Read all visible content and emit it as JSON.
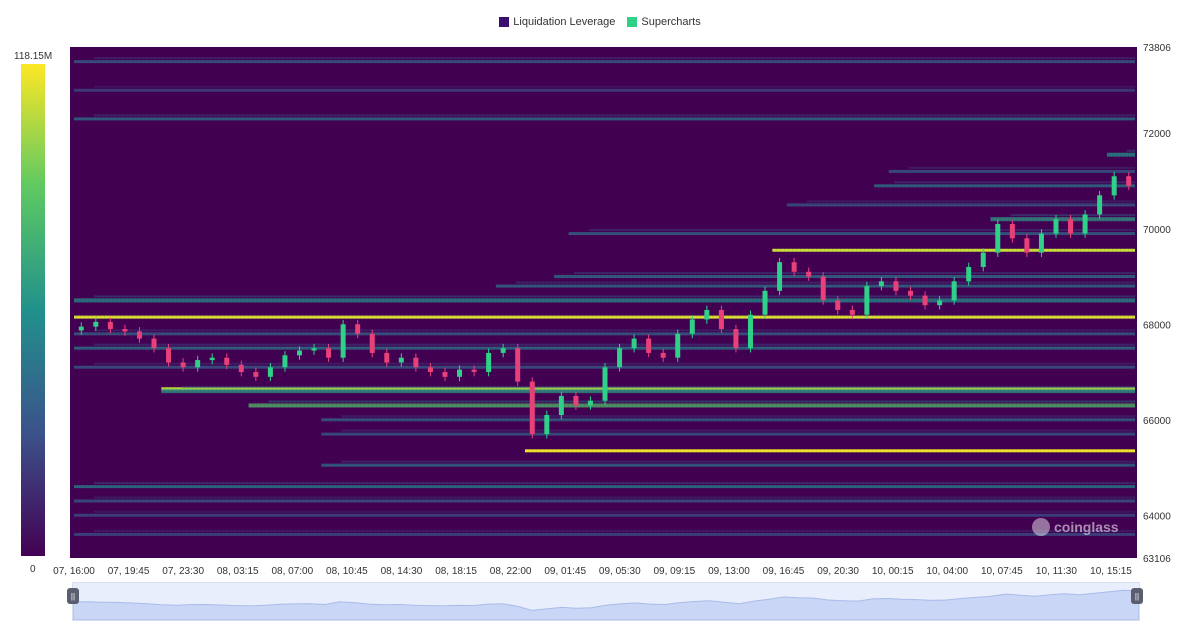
{
  "legend": {
    "items": [
      {
        "label": "Liquidation Leverage",
        "color": "#3b0f70"
      },
      {
        "label": "Supercharts",
        "color": "#2fd088"
      }
    ]
  },
  "colorbar": {
    "max_label": "118.15M",
    "min_label": "0",
    "max": 118.15,
    "min": 0,
    "unit": "M"
  },
  "watermark": {
    "text": "coinglass"
  },
  "chart_data": {
    "type": "heatmap",
    "y_axis": {
      "min": 63106,
      "max": 73806,
      "tick_values": [
        64000,
        66000,
        68000,
        70000,
        72000
      ],
      "tick_labels": [
        "64000",
        "66000",
        "68000",
        "70000",
        "72000"
      ],
      "edge_labels": [
        "73806",
        "63106"
      ]
    },
    "x_axis": {
      "tick_labels": [
        "07, 16:00",
        "07, 19:45",
        "07, 23:30",
        "08, 03:15",
        "08, 07:00",
        "08, 10:45",
        "08, 14:30",
        "08, 18:15",
        "08, 22:00",
        "09, 01:45",
        "09, 05:30",
        "09, 09:15",
        "09, 13:00",
        "09, 16:45",
        "09, 20:30",
        "10, 00:15",
        "10, 04:00",
        "10, 07:45",
        "10, 11:30",
        "10, 15:15"
      ]
    },
    "price_series": {
      "name": "Supercharts",
      "close": [
        67950,
        68050,
        67900,
        67850,
        67700,
        67500,
        67200,
        67100,
        67250,
        67300,
        67150,
        67000,
        66900,
        67100,
        67350,
        67450,
        67500,
        67300,
        68000,
        67800,
        67400,
        67200,
        67300,
        67100,
        67000,
        66900,
        67050,
        67000,
        67400,
        67500,
        66800,
        65700,
        66100,
        66500,
        66300,
        66400,
        67100,
        67500,
        67700,
        67400,
        67300,
        67800,
        68100,
        68300,
        67900,
        67500,
        68200,
        68700,
        69300,
        69100,
        69000,
        68500,
        68300,
        68200,
        68800,
        68900,
        68700,
        68600,
        68400,
        68500,
        68900,
        69200,
        69500,
        70100,
        69800,
        69500,
        69900,
        70200,
        69900,
        70300,
        70700,
        71100,
        70900
      ]
    },
    "liquidation_bands": [
      {
        "price": 65350,
        "intensity": 0.98
      },
      {
        "price": 68150,
        "intensity": 0.95
      },
      {
        "price": 69550,
        "intensity": 0.92
      },
      {
        "price": 66650,
        "intensity": 0.9
      },
      {
        "price": 66300,
        "intensity": 0.7
      },
      {
        "price": 70200,
        "intensity": 0.55
      },
      {
        "price": 66600,
        "intensity": 0.55
      },
      {
        "price": 68500,
        "intensity": 0.5
      },
      {
        "price": 67500,
        "intensity": 0.42
      },
      {
        "price": 64600,
        "intensity": 0.45
      },
      {
        "price": 65050,
        "intensity": 0.38
      },
      {
        "price": 71550,
        "intensity": 0.5
      },
      {
        "price": 72300,
        "intensity": 0.38
      },
      {
        "price": 73500,
        "intensity": 0.32
      },
      {
        "price": 70900,
        "intensity": 0.4
      },
      {
        "price": 69900,
        "intensity": 0.35
      },
      {
        "price": 69000,
        "intensity": 0.4
      },
      {
        "price": 68800,
        "intensity": 0.38
      },
      {
        "price": 67800,
        "intensity": 0.32
      },
      {
        "price": 67100,
        "intensity": 0.3
      },
      {
        "price": 66000,
        "intensity": 0.35
      },
      {
        "price": 65700,
        "intensity": 0.3
      },
      {
        "price": 64300,
        "intensity": 0.3
      },
      {
        "price": 64000,
        "intensity": 0.25
      },
      {
        "price": 63600,
        "intensity": 0.25
      },
      {
        "price": 72900,
        "intensity": 0.22
      },
      {
        "price": 71200,
        "intensity": 0.3
      },
      {
        "price": 70500,
        "intensity": 0.3
      }
    ],
    "grid": false
  }
}
